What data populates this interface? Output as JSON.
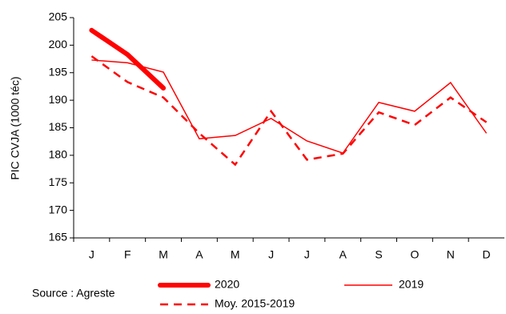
{
  "chart_data": {
    "type": "line",
    "y_label": "PIC  CVJA (1000 téc)",
    "source": "Source : Agreste",
    "categories": [
      "J",
      "F",
      "M",
      "A",
      "M",
      "J",
      "J",
      "A",
      "S",
      "O",
      "N",
      "D"
    ],
    "series": [
      {
        "name": "2020",
        "color": "#ff0000",
        "style": "thick",
        "values": [
          202.7,
          198.3,
          192.2,
          null,
          null,
          null,
          null,
          null,
          null,
          null,
          null,
          null
        ]
      },
      {
        "name": "2019",
        "color": "#ff0000",
        "style": "thin",
        "values": [
          197.3,
          196.8,
          195.1,
          183.0,
          183.6,
          186.7,
          182.6,
          180.4,
          189.6,
          188.0,
          193.2,
          184.0
        ]
      },
      {
        "name": "Moy. 2015-2019",
        "color": "#ff0000",
        "style": "dashed",
        "values": [
          198.0,
          193.3,
          190.5,
          184.0,
          178.3,
          188.0,
          179.2,
          180.3,
          187.8,
          185.5,
          190.5,
          186.0
        ]
      }
    ],
    "ylim": [
      165,
      205
    ],
    "yticks": [
      165,
      170,
      175,
      180,
      185,
      190,
      195,
      200,
      205
    ]
  }
}
